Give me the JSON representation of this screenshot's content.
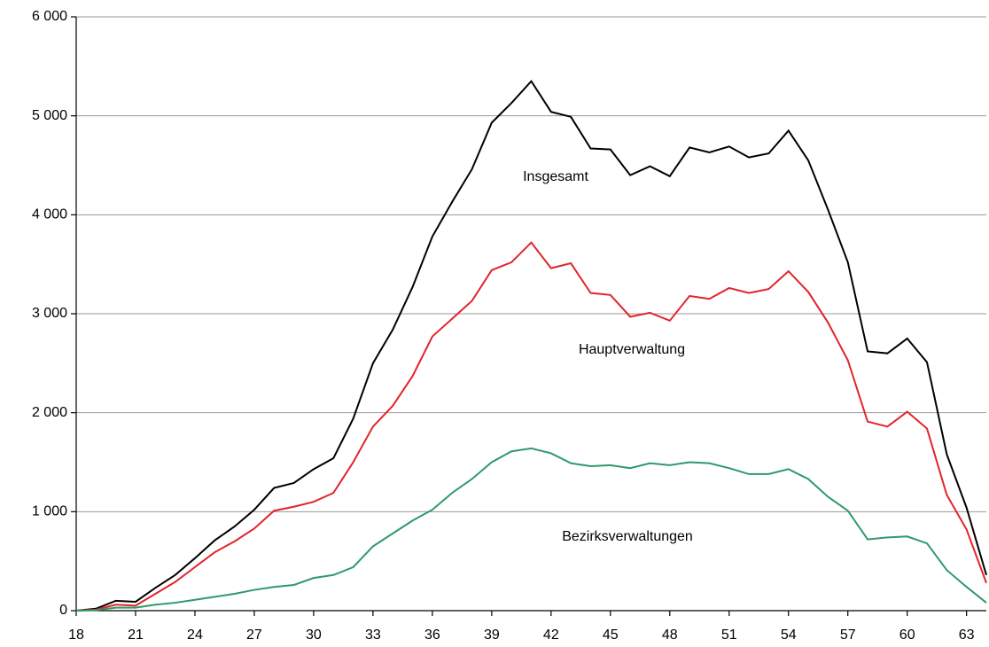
{
  "chart_data": {
    "type": "line",
    "categories": [
      18,
      null,
      null,
      21,
      null,
      null,
      24,
      null,
      null,
      27,
      null,
      null,
      30,
      null,
      null,
      33,
      null,
      null,
      36,
      null,
      null,
      39,
      null,
      null,
      42,
      null,
      null,
      45,
      null,
      null,
      48,
      null,
      null,
      51,
      null,
      null,
      54,
      null,
      null,
      57,
      null,
      null,
      60,
      null,
      null,
      63,
      null
    ],
    "series": [
      {
        "name": "Insgesamt",
        "color": "#000000",
        "values": [
          0,
          20,
          100,
          90,
          230,
          360,
          530,
          710,
          850,
          1020,
          1240,
          1290,
          1430,
          1540,
          1940,
          2500,
          2840,
          3270,
          3780,
          4130,
          4460,
          4930,
          5130,
          5350,
          5040,
          4990,
          4670,
          4660,
          4400,
          4490,
          4390,
          4680,
          4630,
          4690,
          4580,
          4620,
          4850,
          4550,
          4050,
          3520,
          2620,
          2600,
          2750,
          2510,
          1580,
          1040,
          360
        ]
      },
      {
        "name": "Hauptverwaltung",
        "color": "#e3232a",
        "values": [
          0,
          10,
          60,
          50,
          170,
          290,
          440,
          590,
          700,
          830,
          1010,
          1050,
          1100,
          1190,
          1500,
          1860,
          2070,
          2370,
          2770,
          2950,
          3130,
          3440,
          3520,
          3720,
          3460,
          3510,
          3210,
          3190,
          2970,
          3010,
          2930,
          3180,
          3150,
          3260,
          3210,
          3250,
          3430,
          3220,
          2910,
          2530,
          1910,
          1860,
          2010,
          1840,
          1170,
          820,
          280
        ]
      },
      {
        "name": "Bezirksverwaltungen",
        "color": "#2e9a6a",
        "values": [
          0,
          5,
          30,
          30,
          60,
          80,
          110,
          140,
          170,
          210,
          240,
          260,
          330,
          360,
          440,
          650,
          780,
          910,
          1020,
          1190,
          1330,
          1500,
          1610,
          1640,
          1590,
          1490,
          1460,
          1470,
          1440,
          1490,
          1470,
          1500,
          1490,
          1440,
          1380,
          1380,
          1430,
          1330,
          1150,
          1010,
          720,
          740,
          750,
          680,
          410,
          240,
          80
        ]
      }
    ],
    "ylim": [
      0,
      6000
    ],
    "yticks": [
      0,
      {
        "value": 1000,
        "label": "1 000"
      },
      {
        "value": 2000,
        "label": "2 000"
      },
      {
        "value": 3000,
        "label": "3 000"
      },
      {
        "value": 4000,
        "label": "4 000"
      },
      {
        "value": 5000,
        "label": "5 000"
      },
      {
        "value": 6000,
        "label": "6 000"
      }
    ],
    "grid": true
  }
}
